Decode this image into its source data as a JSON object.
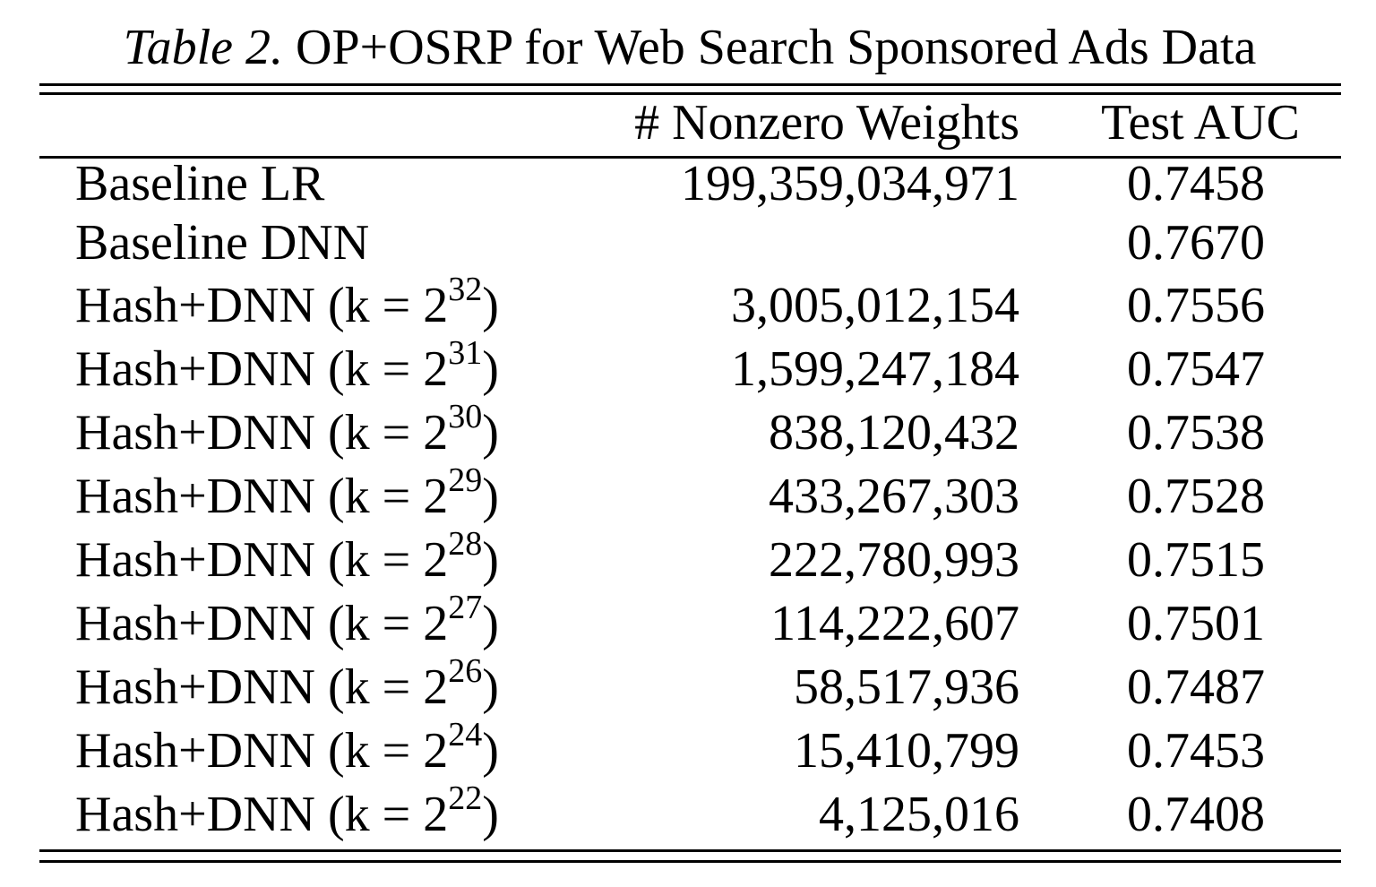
{
  "caption": {
    "label": "Table 2.",
    "title": "OP+OSRP for Web Search Sponsored Ads Data"
  },
  "headers": {
    "method": "",
    "weights": "# Nonzero Weights",
    "auc": "Test AUC"
  },
  "rows": [
    {
      "method": "Baseline LR",
      "weights": "199,359,034,971",
      "auc": "0.7458"
    },
    {
      "method": "Baseline DNN",
      "weights": "",
      "auc": "0.7670"
    },
    {
      "method": "Hash+DNN (k = 2",
      "exp": "32",
      "method_end": ")",
      "weights": "3,005,012,154",
      "auc": "0.7556"
    },
    {
      "method": "Hash+DNN (k = 2",
      "exp": "31",
      "method_end": ")",
      "weights": "1,599,247,184",
      "auc": "0.7547"
    },
    {
      "method": "Hash+DNN (k = 2",
      "exp": "30",
      "method_end": ")",
      "weights": "838,120,432",
      "auc": "0.7538"
    },
    {
      "method": "Hash+DNN (k = 2",
      "exp": "29",
      "method_end": ")",
      "weights": "433,267,303",
      "auc": "0.7528"
    },
    {
      "method": "Hash+DNN (k = 2",
      "exp": "28",
      "method_end": ")",
      "weights": "222,780,993",
      "auc": "0.7515"
    },
    {
      "method": "Hash+DNN (k = 2",
      "exp": "27",
      "method_end": ")",
      "weights": "114,222,607",
      "auc": "0.7501"
    },
    {
      "method": "Hash+DNN (k = 2",
      "exp": "26",
      "method_end": ")",
      "weights": "58,517,936",
      "auc": "0.7487"
    },
    {
      "method": "Hash+DNN (k = 2",
      "exp": "24",
      "method_end": ")",
      "weights": "15,410,799",
      "auc": "0.7453"
    },
    {
      "method": "Hash+DNN (k = 2",
      "exp": "22",
      "method_end": ")",
      "weights": "4,125,016",
      "auc": "0.7408"
    }
  ]
}
